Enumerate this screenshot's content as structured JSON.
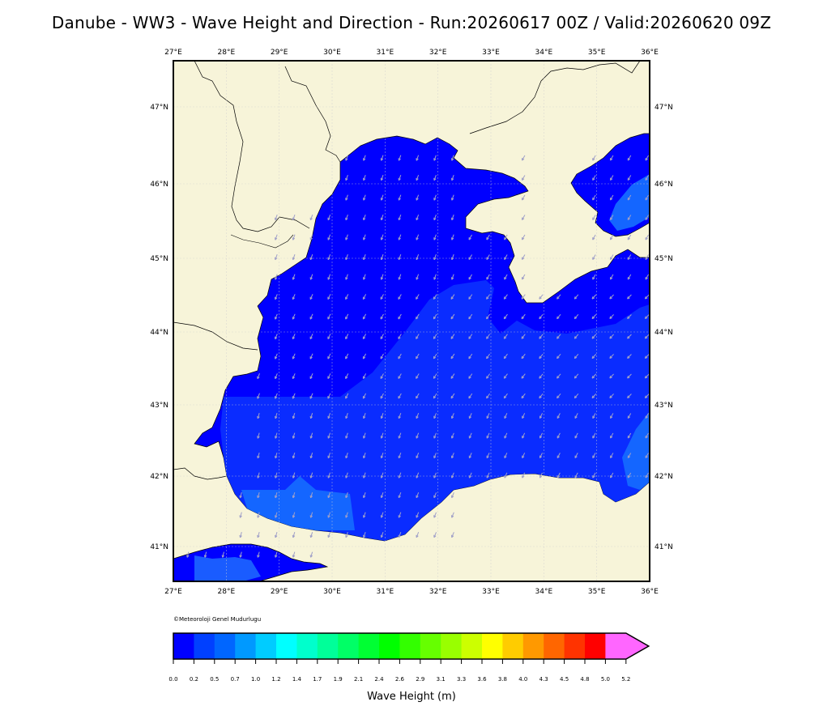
{
  "header": {
    "title": "Danube - WW3 - Wave Height and Direction - Run:20260617 00Z / Valid:20260620 09Z"
  },
  "map": {
    "lon_ticks": [
      "27°E",
      "28°E",
      "29°E",
      "30°E",
      "31°E",
      "32°E",
      "33°E",
      "34°E",
      "35°E",
      "36°E"
    ],
    "lat_ticks": [
      "47°N",
      "46°N",
      "45°N",
      "44°N",
      "43°N",
      "42°N",
      "41°N"
    ],
    "colors": {
      "land": "#f7f4d9",
      "sea_low": "#0000ff",
      "sea_mid": "#0a2cff",
      "sea_high": "#1466ff",
      "arrow": "#a0a0c8",
      "coast": "#000000",
      "grid": "#c8c8c8"
    }
  },
  "credit": "©Meteoroloji Genel Mudurlugu",
  "colorbar": {
    "title": "Wave Height (m)",
    "labels": [
      "0.0",
      "0.2",
      "0.5",
      "0.7",
      "1.0",
      "1.2",
      "1.4",
      "1.7",
      "1.9",
      "2.1",
      "2.4",
      "2.6",
      "2.9",
      "3.1",
      "3.3",
      "3.6",
      "3.8",
      "4.0",
      "4.3",
      "4.5",
      "4.8",
      "5.0",
      "5.2"
    ],
    "colors": [
      "#0000ff",
      "#0040ff",
      "#0066ff",
      "#0099ff",
      "#00ccff",
      "#00ffff",
      "#00ffcc",
      "#00ff99",
      "#00ff66",
      "#00ff33",
      "#00ff00",
      "#33ff00",
      "#66ff00",
      "#99ff00",
      "#ccff00",
      "#ffff00",
      "#ffcc00",
      "#ff9900",
      "#ff6600",
      "#ff3300",
      "#ff0000",
      "#ff66ff"
    ]
  }
}
